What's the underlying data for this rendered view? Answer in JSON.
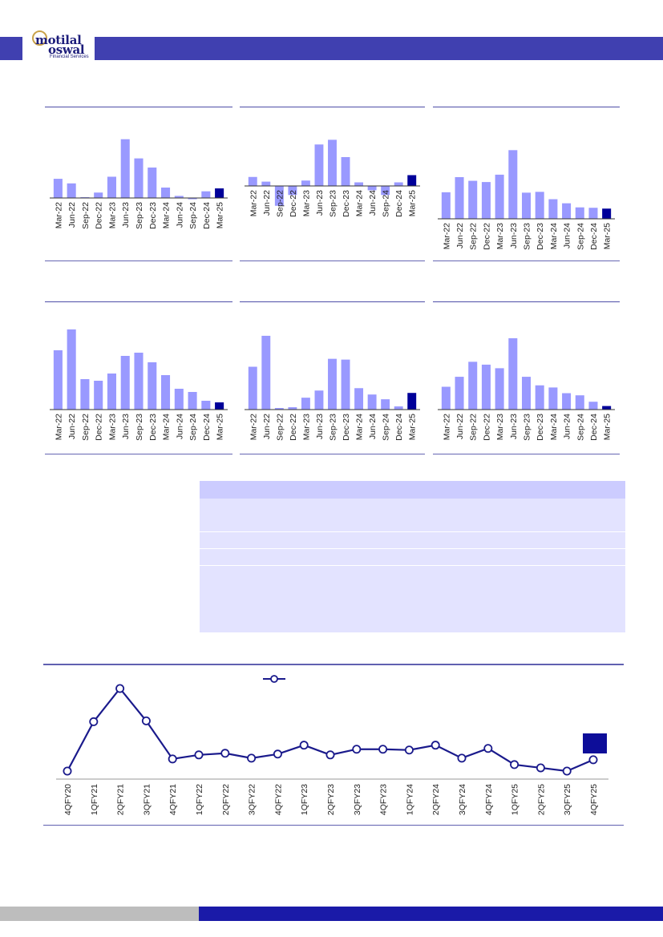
{
  "brand": {
    "name_line1": "motilal",
    "name_line2": "oswal",
    "tagline": "Financial Services"
  },
  "colors": {
    "bar": "#9999ff",
    "bar_highlight": "#000099",
    "line": "#1a1a8c",
    "frame": "#6666b3",
    "header": "#4040b0"
  },
  "chart_data": [
    {
      "type": "bar",
      "categories": [
        "Mar-22",
        "Jun-22",
        "Sep-22",
        "Dec-22",
        "Mar-23",
        "Jun-23",
        "Sep-23",
        "Dec-23",
        "Mar-24",
        "Jun-24",
        "Sep-24",
        "Dec-24",
        "Mar-25"
      ],
      "values": [
        4.6,
        3.5,
        0.1,
        1.3,
        5.1,
        14.1,
        9.5,
        7.3,
        2.5,
        0.5,
        -0.3,
        1.6,
        2.3
      ],
      "highlight_last": true
    },
    {
      "type": "bar",
      "categories": [
        "Mar-22",
        "Jun-22",
        "Sep-22",
        "Dec-22",
        "Mar-23",
        "Jun-23",
        "Sep-23",
        "Dec-23",
        "Mar-24",
        "Jun-24",
        "Sep-24",
        "Dec-24",
        "Mar-25"
      ],
      "values": [
        2.5,
        1.2,
        -5.5,
        -2.5,
        1.5,
        11.5,
        12.8,
        8.0,
        1.0,
        -1.2,
        -2.5,
        1.0,
        3.0
      ],
      "highlight_last": true
    },
    {
      "type": "bar",
      "categories": [
        "Mar-22",
        "Jun-22",
        "Sep-22",
        "Dec-22",
        "Mar-23",
        "Jun-23",
        "Sep-23",
        "Dec-23",
        "Mar-24",
        "Jun-24",
        "Sep-24",
        "Dec-24",
        "Mar-25"
      ],
      "values": [
        6.5,
        10.2,
        9.3,
        9.0,
        10.8,
        16.8,
        6.4,
        6.6,
        4.8,
        3.8,
        2.8,
        2.7,
        2.5
      ],
      "highlight_last": true
    },
    {
      "type": "bar",
      "categories": [
        "Mar-22",
        "Jun-22",
        "Sep-22",
        "Dec-22",
        "Mar-23",
        "Jun-23",
        "Sep-23",
        "Dec-23",
        "Mar-24",
        "Jun-24",
        "Sep-24",
        "Dec-24",
        "Mar-25"
      ],
      "values": [
        7.4,
        10.0,
        3.8,
        3.6,
        4.5,
        6.7,
        7.1,
        5.9,
        4.3,
        2.6,
        2.2,
        1.1,
        0.9
      ],
      "highlight_last": true
    },
    {
      "type": "bar",
      "categories": [
        "Mar-22",
        "Jun-22",
        "Sep-22",
        "Dec-22",
        "Mar-23",
        "Jun-23",
        "Sep-23",
        "Dec-23",
        "Mar-24",
        "Jun-24",
        "Sep-24",
        "Dec-24",
        "Mar-25"
      ],
      "values": [
        5.4,
        9.3,
        0.2,
        0.3,
        1.5,
        2.4,
        6.4,
        6.3,
        2.7,
        1.9,
        1.3,
        0.4,
        2.1
      ],
      "highlight_last": true
    },
    {
      "type": "bar",
      "categories": [
        "Mar-22",
        "Jun-22",
        "Sep-22",
        "Dec-22",
        "Mar-23",
        "Jun-23",
        "Sep-23",
        "Dec-23",
        "Mar-24",
        "Jun-24",
        "Sep-24",
        "Dec-24",
        "Mar-25"
      ],
      "values": [
        3.2,
        4.6,
        6.7,
        6.3,
        5.8,
        10.0,
        4.6,
        3.4,
        3.1,
        2.3,
        2.0,
        1.1,
        0.5
      ],
      "highlight_last": true
    },
    {
      "type": "line",
      "categories": [
        "4QFY20",
        "1QFY21",
        "2QFY21",
        "3QFY21",
        "4QFY21",
        "1QFY22",
        "2QFY22",
        "3QFY22",
        "4QFY22",
        "1QFY23",
        "2QFY23",
        "3QFY23",
        "4QFY23",
        "1QFY24",
        "2QFY24",
        "3QFY24",
        "4QFY24",
        "1QFY25",
        "2QFY25",
        "3QFY25",
        "4QFY25"
      ],
      "values": [
        0.0,
        6.1,
        10.2,
        6.2,
        1.5,
        2.0,
        2.2,
        1.6,
        2.1,
        3.2,
        2.0,
        2.7,
        2.7,
        2.6,
        3.2,
        1.6,
        2.8,
        0.8,
        0.4,
        0.0,
        1.4
      ]
    }
  ]
}
